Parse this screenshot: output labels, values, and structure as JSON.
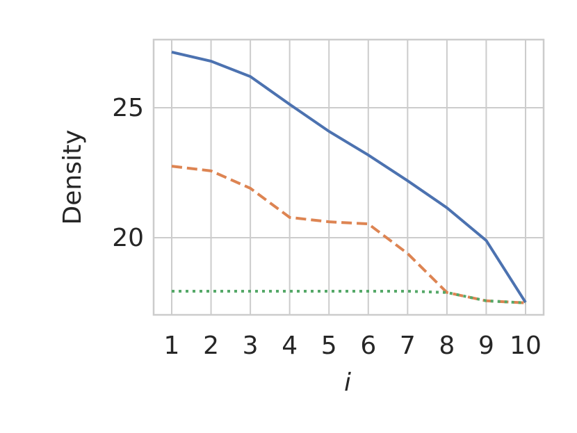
{
  "chart_data": {
    "type": "line",
    "x": [
      1,
      2,
      3,
      4,
      5,
      6,
      7,
      8,
      9,
      10
    ],
    "series": [
      {
        "color": "#4c72b0",
        "linestyle": "solid",
        "values": [
          27.14,
          26.79,
          26.2,
          25.13,
          24.09,
          23.18,
          22.19,
          21.15,
          19.89,
          17.51
        ]
      },
      {
        "color": "#dd8452",
        "linestyle": "dashed",
        "values": [
          22.75,
          22.57,
          21.9,
          20.78,
          20.61,
          20.53,
          19.39,
          17.89,
          17.57,
          17.49
        ]
      },
      {
        "color": "#55a868",
        "linestyle": "dotted",
        "values": [
          17.94,
          17.94,
          17.94,
          17.94,
          17.94,
          17.94,
          17.94,
          17.89,
          17.57,
          17.49
        ]
      }
    ],
    "xlabel": "i",
    "ylabel": "Density",
    "xlim": [
      0.54,
      10.46
    ],
    "ylim": [
      17.03,
      27.62
    ],
    "xticks": [
      1,
      2,
      3,
      4,
      5,
      6,
      7,
      8,
      9,
      10
    ],
    "yticks": [
      20,
      25
    ],
    "grid": true
  }
}
